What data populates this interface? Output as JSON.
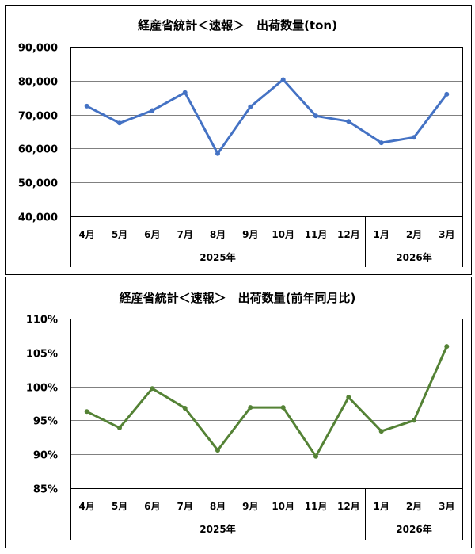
{
  "colors": {
    "series_top": "#4472C4",
    "series_bottom": "#548235",
    "grid": "#808080",
    "border": "#000000"
  },
  "chart_data": [
    {
      "type": "line",
      "title": "経産省統計＜速報＞　出荷数量(ton)",
      "categories": [
        "4月",
        "5月",
        "6月",
        "7月",
        "8月",
        "9月",
        "10月",
        "11月",
        "12月",
        "1月",
        "2月",
        "3月"
      ],
      "groups": [
        {
          "label": "2025年",
          "span": 9
        },
        {
          "label": "2026年",
          "span": 3
        }
      ],
      "values": [
        72500,
        67500,
        71200,
        76500,
        58500,
        72300,
        80300,
        69600,
        68000,
        61700,
        63300,
        76000
      ],
      "ylim": [
        40000,
        90000
      ],
      "yticks": [
        "40,000",
        "50,000",
        "60,000",
        "70,000",
        "80,000",
        "90,000"
      ],
      "ytick_values": [
        40000,
        50000,
        60000,
        70000,
        80000,
        90000
      ],
      "grid": true
    },
    {
      "type": "line",
      "title": "経産省統計＜速報＞　出荷数量(前年同月比)",
      "categories": [
        "4月",
        "5月",
        "6月",
        "7月",
        "8月",
        "9月",
        "10月",
        "11月",
        "12月",
        "1月",
        "2月",
        "3月"
      ],
      "groups": [
        {
          "label": "2025年",
          "span": 9
        },
        {
          "label": "2026年",
          "span": 3
        }
      ],
      "values": [
        96.3,
        93.9,
        99.7,
        96.8,
        90.6,
        96.9,
        96.9,
        89.7,
        98.4,
        93.4,
        95.0,
        105.9
      ],
      "ylim": [
        85,
        110
      ],
      "yticks": [
        "85%",
        "90%",
        "95%",
        "100%",
        "105%",
        "110%"
      ],
      "ytick_values": [
        85,
        90,
        95,
        100,
        105,
        110
      ],
      "grid": true
    }
  ]
}
